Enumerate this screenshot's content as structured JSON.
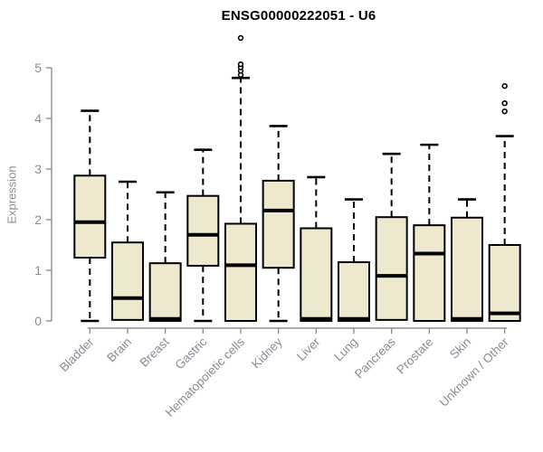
{
  "title": "ENSG00000222051 - U6",
  "chart_data": {
    "type": "boxplot",
    "title": "ENSG00000222051 - U6",
    "xlabel": "",
    "ylabel": "Expression",
    "ylim": [
      0,
      5
    ],
    "yticks": [
      0,
      1,
      2,
      3,
      4,
      5
    ],
    "grid": false,
    "legend": "none",
    "categories": [
      "Bladder",
      "Brain",
      "Breast",
      "Gastric",
      "Hematopoietic cells",
      "Kidney",
      "Liver",
      "Lung",
      "Pancreas",
      "Prostate",
      "Skin",
      "Unknown / Other"
    ],
    "series": [
      {
        "category": "Bladder",
        "whisker_low": 0,
        "q1": 1.25,
        "median": 1.95,
        "q3": 2.87,
        "whisker_high": 4.15,
        "outliers": []
      },
      {
        "category": "Brain",
        "whisker_low": 0,
        "q1": 0.02,
        "median": 0.45,
        "q3": 1.55,
        "whisker_high": 2.75,
        "outliers": []
      },
      {
        "category": "Breast",
        "whisker_low": 0,
        "q1": 0.0,
        "median": 0.04,
        "q3": 1.14,
        "whisker_high": 2.54,
        "outliers": []
      },
      {
        "category": "Gastric",
        "whisker_low": 0,
        "q1": 1.09,
        "median": 1.7,
        "q3": 2.47,
        "whisker_high": 3.38,
        "outliers": []
      },
      {
        "category": "Hematopoietic cells",
        "whisker_low": 0,
        "q1": 0.0,
        "median": 1.1,
        "q3": 1.92,
        "whisker_high": 4.8,
        "outliers": [
          4.86,
          4.94,
          5.01,
          5.07,
          5.59
        ]
      },
      {
        "category": "Kidney",
        "whisker_low": 0,
        "q1": 1.05,
        "median": 2.18,
        "q3": 2.77,
        "whisker_high": 3.85,
        "outliers": []
      },
      {
        "category": "Liver",
        "whisker_low": 0,
        "q1": 0.0,
        "median": 0.04,
        "q3": 1.83,
        "whisker_high": 2.84,
        "outliers": []
      },
      {
        "category": "Lung",
        "whisker_low": 0,
        "q1": 0.0,
        "median": 0.04,
        "q3": 1.16,
        "whisker_high": 2.4,
        "outliers": []
      },
      {
        "category": "Pancreas",
        "whisker_low": 0,
        "q1": 0.02,
        "median": 0.89,
        "q3": 2.05,
        "whisker_high": 3.3,
        "outliers": []
      },
      {
        "category": "Prostate",
        "whisker_low": 0,
        "q1": 0.0,
        "median": 1.33,
        "q3": 1.89,
        "whisker_high": 3.48,
        "outliers": []
      },
      {
        "category": "Skin",
        "whisker_low": 0,
        "q1": 0.0,
        "median": 0.04,
        "q3": 2.04,
        "whisker_high": 2.4,
        "outliers": []
      },
      {
        "category": "Unknown / Other",
        "whisker_low": 0,
        "q1": 0.0,
        "median": 0.15,
        "q3": 1.5,
        "whisker_high": 3.65,
        "outliers": [
          4.14,
          4.3,
          4.64
        ]
      }
    ],
    "colors": {
      "box_fill": "#EDE8CE",
      "box_border": "#000000",
      "median": "#000000",
      "whisker": "#000000",
      "outlier_stroke": "#000000",
      "axis_line": "#8f8f8f",
      "axis_text": "#878d96",
      "title_color": "#000000",
      "background": "#ffffff"
    }
  }
}
